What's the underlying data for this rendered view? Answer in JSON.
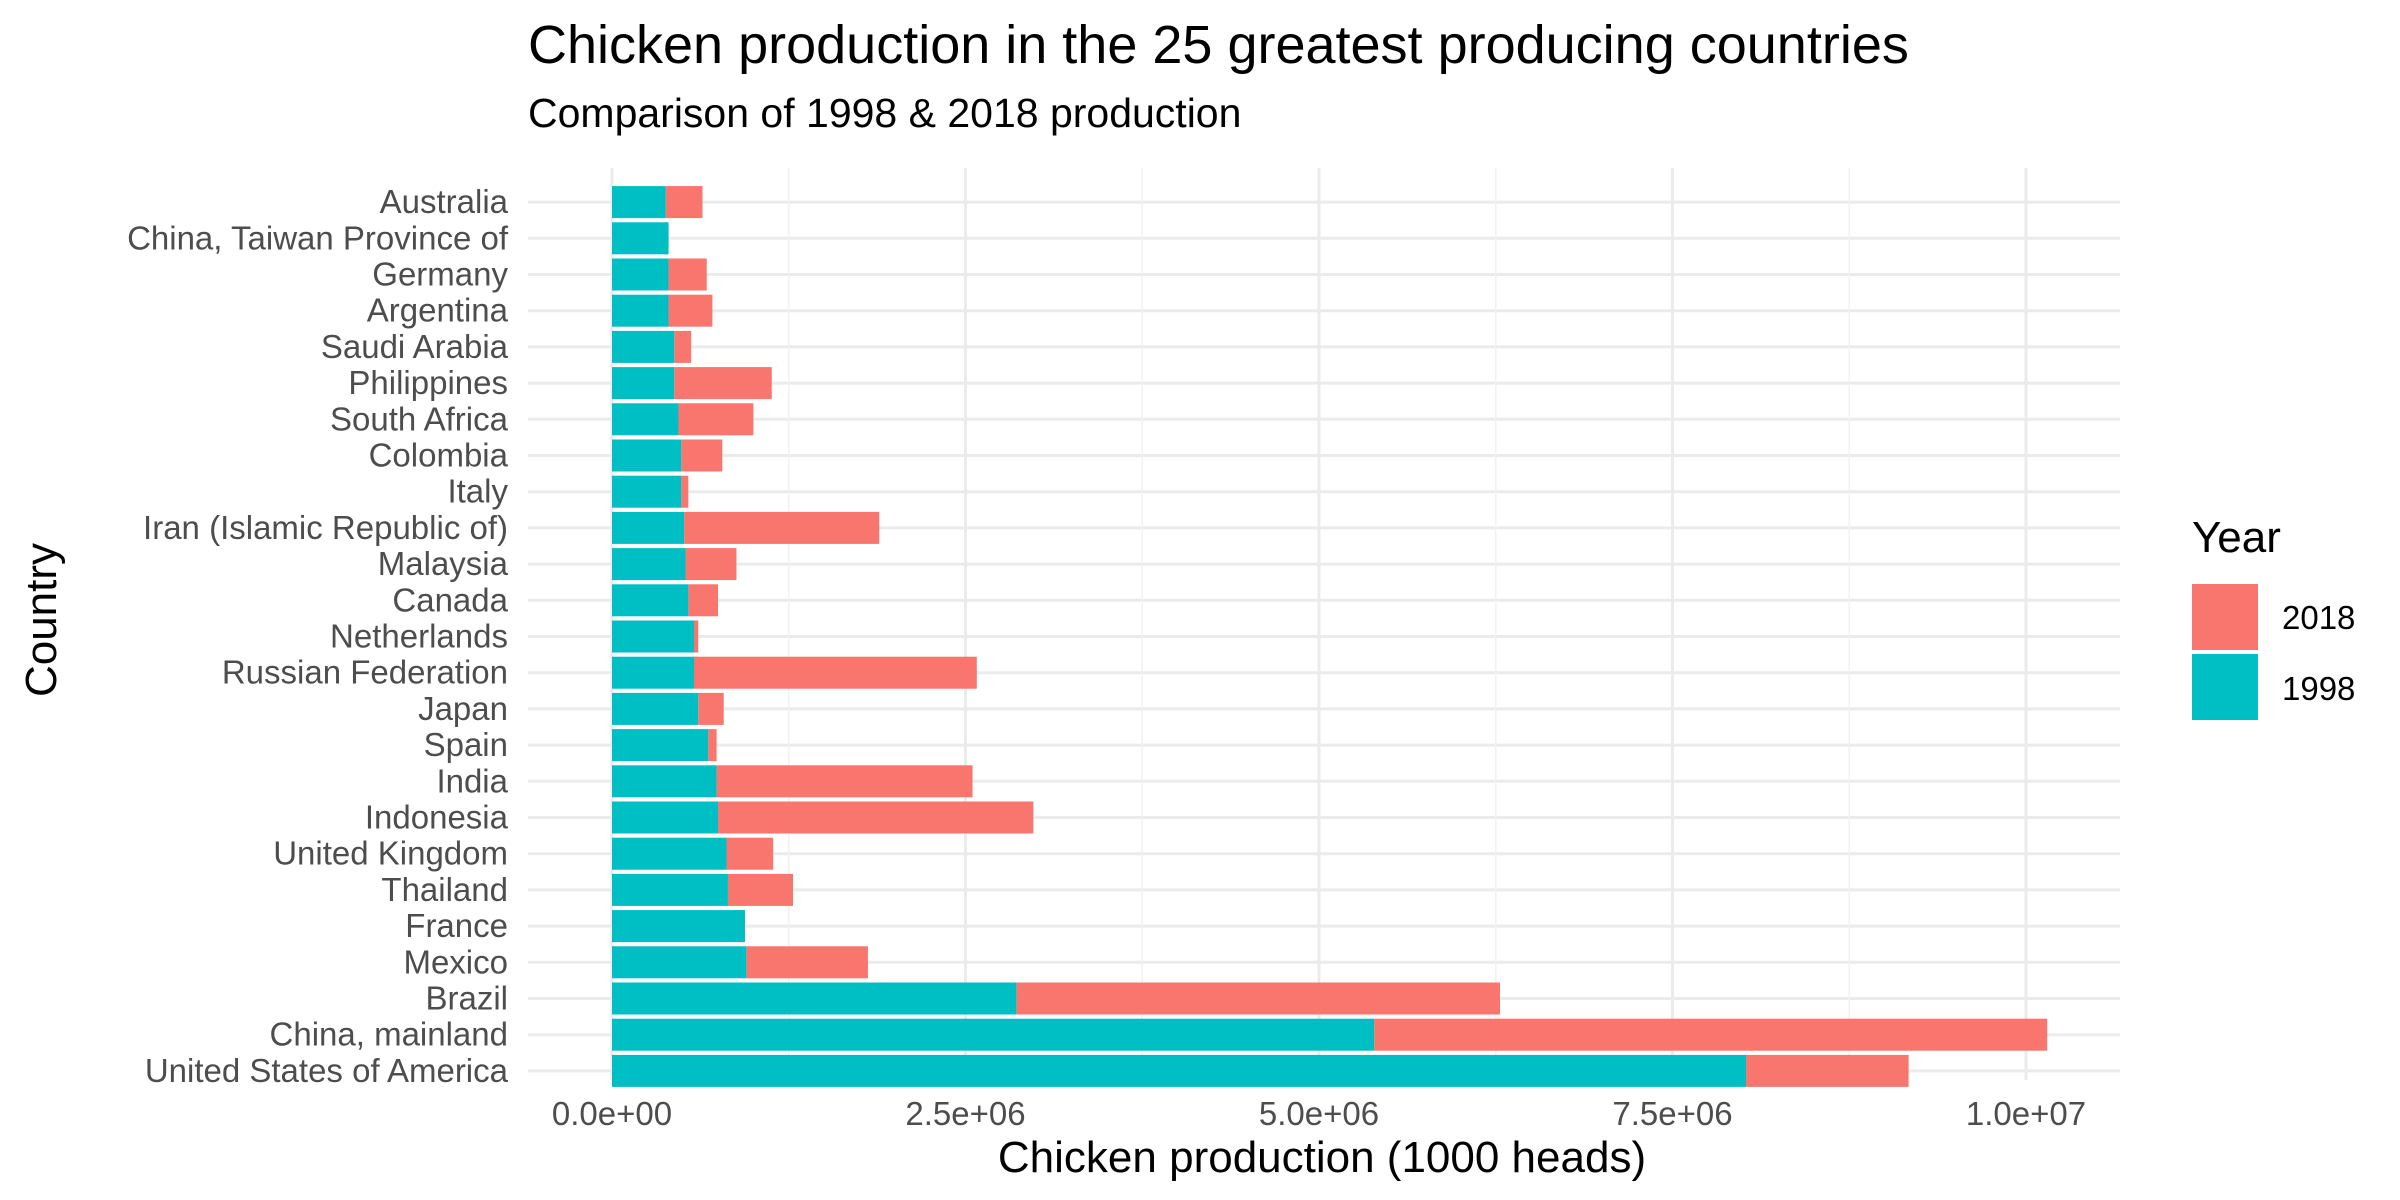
{
  "chart_data": {
    "type": "bar",
    "orientation": "horizontal",
    "stacked": true,
    "title": "Chicken production in the 25 greatest producing countries",
    "subtitle": "Comparison of 1998 & 2018 production",
    "xlabel": "Chicken production (1000 heads)",
    "ylabel": "Country",
    "xlim": [
      -200000,
      10500000
    ],
    "x_ticks": [
      0,
      2500000,
      5000000,
      7500000,
      10000000
    ],
    "x_tick_labels": [
      "0.0e+00",
      "2.5e+06",
      "5.0e+06",
      "7.5e+06",
      "1.0e+07"
    ],
    "grid": true,
    "legend": {
      "title": "Year",
      "placement": "right",
      "entries": [
        "2018",
        "1998"
      ]
    },
    "categories": [
      "Australia",
      "China, Taiwan Province of",
      "Germany",
      "Argentina",
      "Saudi Arabia",
      "Philippines",
      "South Africa",
      "Colombia",
      "Italy",
      "Iran (Islamic Republic of)",
      "Malaysia",
      "Canada",
      "Netherlands",
      "Russian Federation",
      "Japan",
      "Spain",
      "India",
      "Indonesia",
      "United Kingdom",
      "Thailand",
      "France",
      "Mexico",
      "Brazil",
      "China, mainland",
      "United States of America"
    ],
    "series": [
      {
        "name": "1998",
        "color": "#00BFC4",
        "values": [
          380000,
          400000,
          400000,
          400000,
          440000,
          440000,
          470000,
          490000,
          490000,
          510000,
          520000,
          540000,
          580000,
          580000,
          610000,
          680000,
          740000,
          750000,
          810000,
          820000,
          940000,
          950000,
          2860000,
          5390000,
          8020000
        ]
      },
      {
        "name": "2018",
        "color": "#F8766D",
        "values": [
          260000,
          -40000,
          270000,
          310000,
          120000,
          690000,
          530000,
          290000,
          50000,
          1380000,
          360000,
          210000,
          30000,
          2000000,
          180000,
          60000,
          1810000,
          2230000,
          330000,
          460000,
          -90000,
          860000,
          3420000,
          4760000,
          1150000
        ]
      }
    ]
  }
}
